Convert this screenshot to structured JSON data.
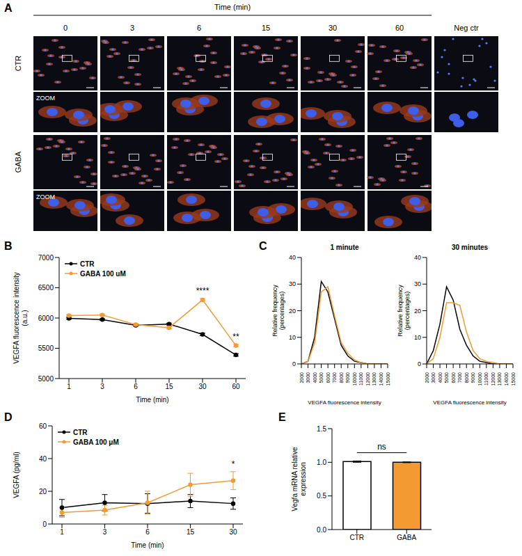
{
  "image_panel": {
    "panel": "A",
    "title": "Time (min)",
    "columns": [
      "0",
      "3",
      "6",
      "15",
      "30",
      "60"
    ],
    "extra_column": "Neg ctr",
    "rows": [
      "CTR",
      "GABA"
    ],
    "zoom_label": "ZOOM"
  },
  "chart_data": [
    {
      "panel": "B",
      "type": "line",
      "categories": [
        "1",
        "3",
        "6",
        "15",
        "30",
        "60"
      ],
      "xlabel": "Time (min)",
      "ylabel": "VEGFA fluorescence intensity (a.u.)",
      "ylim": [
        5000,
        7000
      ],
      "yticks": [
        5000,
        5500,
        6000,
        6500,
        7000
      ],
      "legend": "upper left",
      "series": [
        {
          "name": "CTR",
          "color": "#000000",
          "marker": "circle",
          "values": [
            5995,
            5975,
            5880,
            5900,
            5730,
            5390
          ],
          "errors": [
            15,
            12,
            15,
            15,
            20,
            20
          ]
        },
        {
          "name": "GABA 100 uM",
          "color": "#F39A32",
          "marker": "circle",
          "values": [
            6040,
            6050,
            5890,
            5840,
            6300,
            5545
          ],
          "errors": [
            15,
            15,
            15,
            20,
            20,
            20
          ]
        }
      ],
      "annotations": [
        {
          "category": "30",
          "text": "****"
        },
        {
          "category": "60",
          "text": "**"
        }
      ]
    },
    {
      "panel": "C",
      "type": "line",
      "title": "1 minute",
      "x": [
        2000,
        3000,
        4000,
        5000,
        6000,
        7000,
        8000,
        9000,
        10000,
        11000,
        12000,
        13000,
        14000,
        15000
      ],
      "xlim": [
        2000,
        15000
      ],
      "xticks": [
        2000,
        3000,
        4000,
        5000,
        6000,
        7000,
        8000,
        9000,
        10000,
        11000,
        12000,
        13000,
        14000,
        15000
      ],
      "xlabel": "VEGFA fluorescence intensity",
      "ylabel": "Relative frequency (percentages)",
      "ylim": [
        0,
        40
      ],
      "yticks": [
        0,
        10,
        20,
        30,
        40
      ],
      "series": [
        {
          "color": "#000000",
          "marker": "none",
          "values": [
            0,
            1,
            10,
            31,
            27,
            17,
            7,
            3,
            1,
            0.5,
            0,
            0,
            0,
            0
          ]
        },
        {
          "color": "#F39A32",
          "marker": "none",
          "values": [
            0,
            1,
            8,
            27,
            29,
            18,
            8,
            4,
            1.5,
            0.5,
            0,
            0,
            0,
            0
          ]
        }
      ]
    },
    {
      "type": "line",
      "title": "30 minutes",
      "x": [
        2000,
        3000,
        4000,
        5000,
        6000,
        7000,
        8000,
        9000,
        10000,
        11000,
        12000,
        13000,
        14000,
        15000
      ],
      "xlim": [
        2000,
        15000
      ],
      "xticks": [
        2000,
        3000,
        4000,
        5000,
        6000,
        7000,
        8000,
        9000,
        10000,
        11000,
        12000,
        13000,
        14000,
        15000
      ],
      "xlabel": "VEGFA fluorescence intensity",
      "ylabel": "Relative frequency (percentages)",
      "ylim": [
        0,
        40
      ],
      "yticks": [
        0,
        10,
        20,
        30,
        40
      ],
      "series": [
        {
          "color": "#000000",
          "marker": "none",
          "values": [
            0,
            5,
            15,
            29,
            24,
            13,
            7,
            3,
            1,
            0.5,
            0,
            0,
            0,
            0
          ]
        },
        {
          "color": "#F39A32",
          "marker": "none",
          "values": [
            0,
            2,
            10,
            23,
            23,
            22,
            12,
            5,
            2,
            1,
            0.5,
            0,
            0,
            0
          ]
        }
      ]
    },
    {
      "panel": "D",
      "type": "line",
      "categories": [
        "1",
        "3",
        "6",
        "15",
        "30"
      ],
      "xlabel": "Time (min)",
      "ylabel": "VEGFA (pg/ml)",
      "ylim": [
        0,
        60
      ],
      "yticks": [
        0,
        20,
        40,
        60
      ],
      "legend": "upper left",
      "series": [
        {
          "name": "CTR",
          "color": "#000000",
          "marker": "circle",
          "values": [
            10,
            13,
            12.5,
            14,
            12.5
          ],
          "errors": [
            5,
            5,
            6,
            4,
            3.5
          ]
        },
        {
          "name": "GABA 100 μM",
          "color": "#F39A32",
          "marker": "circle",
          "values": [
            7,
            8.5,
            13,
            24,
            26.5
          ],
          "errors": [
            3,
            3,
            7,
            7,
            5.5
          ]
        }
      ],
      "annotations": [
        {
          "category": "30",
          "text": "*"
        }
      ]
    },
    {
      "panel": "E",
      "type": "bar",
      "categories": [
        "CTR",
        "GABA"
      ],
      "values": [
        1.01,
        1.0
      ],
      "errors": [
        0.01,
        0.005
      ],
      "colors": [
        "#FFFFFF",
        "#F39A32"
      ],
      "ylabel": "Vegfa mRNA relative expression",
      "ylim": [
        0,
        1.5
      ],
      "yticks": [
        {
          "value": 0,
          "label": "0.0"
        },
        0.5,
        {
          "value": 1,
          "label": "1.0"
        },
        1.5
      ],
      "annotations": [
        {
          "categories": [
            "CTR",
            "GABA"
          ],
          "text": "ns"
        }
      ]
    }
  ]
}
